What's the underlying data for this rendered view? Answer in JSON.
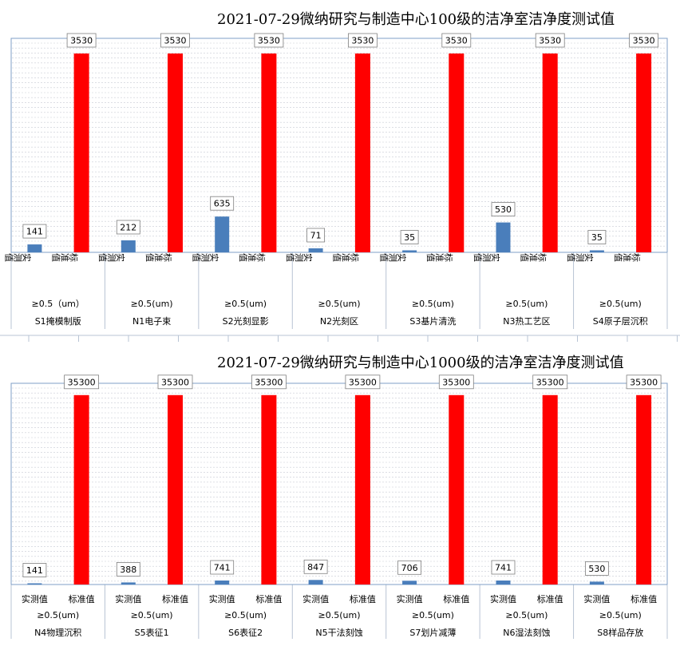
{
  "chart_data": [
    {
      "type": "bar",
      "title": "2021-07-29微纳研究与制造中心100级的洁净室洁净度测试值",
      "groups": [
        {
          "room": "S1掩模制版",
          "size": "≥0.5（um）",
          "measured": 141,
          "standard": 3530
        },
        {
          "room": "N1电子束",
          "size": "≥0.5(um)",
          "measured": 212,
          "standard": 3530
        },
        {
          "room": "S2光刻显影",
          "size": "≥0.5(um)",
          "measured": 635,
          "standard": 3530
        },
        {
          "room": "N2光刻区",
          "size": "≥0.5(um)",
          "measured": 71,
          "standard": 3530
        },
        {
          "room": "S3基片清洗",
          "size": "≥0.5(um)",
          "measured": 35,
          "standard": 3530
        },
        {
          "room": "N3热工艺区",
          "size": "≥0.5(um)",
          "measured": 530,
          "standard": 3530
        },
        {
          "room": "S4原子层沉积",
          "size": "≥0.5(um)",
          "measured": 35,
          "standard": 3530
        }
      ],
      "bar_labels": [
        "实测值",
        "标准值"
      ],
      "label_orientation": "vertical",
      "colors": {
        "measured": "#4a7ebb",
        "standard": "#ff0000"
      },
      "ylim": [
        0,
        3800
      ]
    },
    {
      "type": "bar",
      "title": "2021-07-29微纳研究与制造中心1000级的洁净室洁净度测试值",
      "groups": [
        {
          "room": "N4物理沉积",
          "size": "≥0.5(um)",
          "measured": 141,
          "standard": 35300
        },
        {
          "room": "S5表征1",
          "size": "≥0.5(um)",
          "measured": 388,
          "standard": 35300
        },
        {
          "room": "S6表征2",
          "size": "≥0.5(um)",
          "measured": 741,
          "standard": 35300
        },
        {
          "room": "N5干法刻蚀",
          "size": "≥0.5(um)",
          "measured": 847,
          "standard": 35300
        },
        {
          "room": "S7划片减薄",
          "size": "≥0.5(um)",
          "measured": 706,
          "standard": 35300
        },
        {
          "room": "N6湿法刻蚀",
          "size": "≥0.5(um)",
          "measured": 741,
          "standard": 35300
        },
        {
          "room": "S8样品存放",
          "size": "≥0.5(um)",
          "measured": 530,
          "standard": 35300
        }
      ],
      "bar_labels": [
        "实测值",
        "标准值"
      ],
      "label_orientation": "horizontal",
      "colors": {
        "measured": "#4a7ebb",
        "standard": "#ff0000"
      },
      "ylim": [
        0,
        37500
      ]
    }
  ]
}
